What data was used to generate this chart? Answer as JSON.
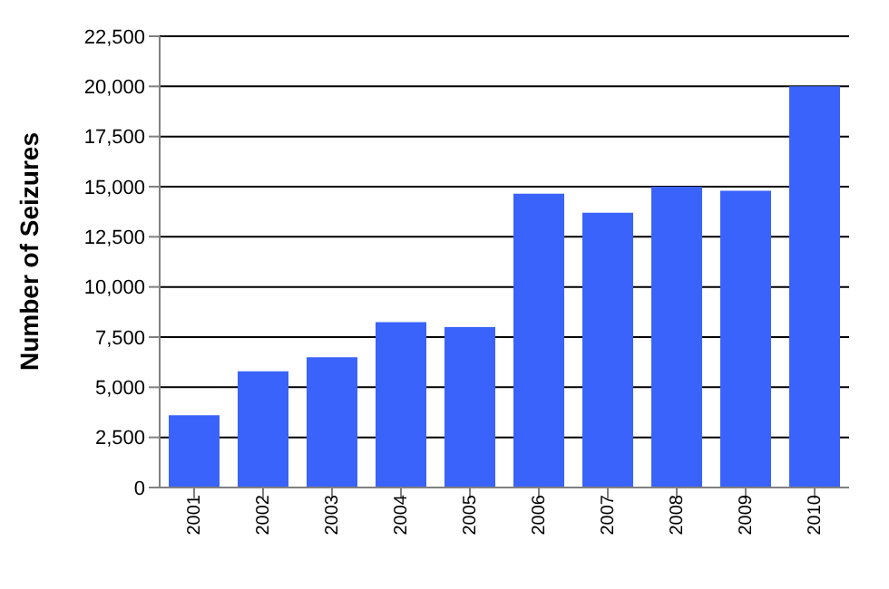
{
  "chart_data": {
    "type": "bar",
    "ylabel": "Number of Seizures",
    "categories": [
      "2001",
      "2002",
      "2003",
      "2004",
      "2005",
      "2006",
      "2007",
      "2008",
      "2009",
      "2010"
    ],
    "values": [
      3600,
      5800,
      6500,
      8250,
      8000,
      14650,
      13700,
      15000,
      14800,
      20000
    ],
    "color": "#3a63fb",
    "ylim": [
      0,
      22500
    ],
    "yticks": [
      {
        "value": 0,
        "label": "0"
      },
      {
        "value": 2500,
        "label": "2,500"
      },
      {
        "value": 5000,
        "label": "5,000"
      },
      {
        "value": 7500,
        "label": "7,500"
      },
      {
        "value": 10000,
        "label": "10,000"
      },
      {
        "value": 12500,
        "label": "12,500"
      },
      {
        "value": 15000,
        "label": "15,000"
      },
      {
        "value": 17500,
        "label": "17,500"
      },
      {
        "value": 20000,
        "label": "20,000"
      },
      {
        "value": 22500,
        "label": "22,500"
      }
    ],
    "grid": "y"
  }
}
